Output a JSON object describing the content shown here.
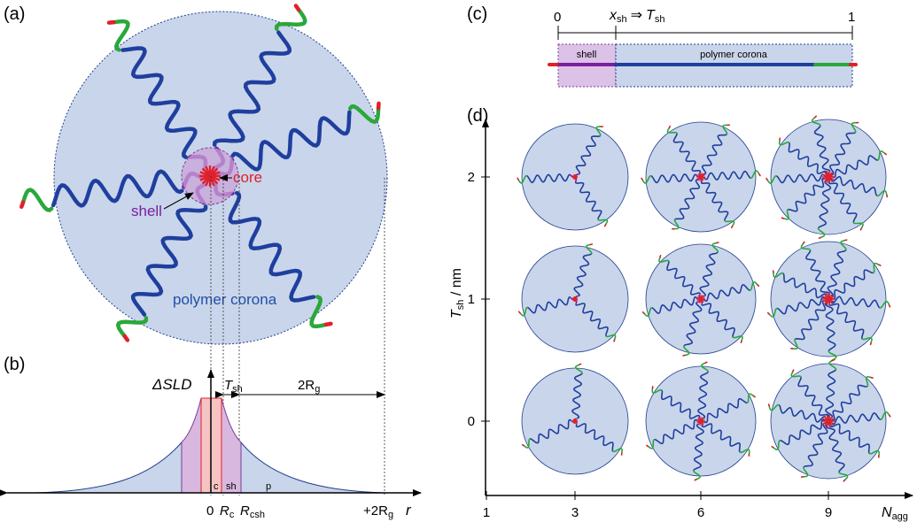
{
  "panel_a": {
    "label": "(a)",
    "core": "core",
    "shell": "shell",
    "corona": "polymer corona"
  },
  "panel_b": {
    "label": "(b)",
    "y_axis": "ΔSLD",
    "t_sh": {
      "main": "T",
      "sub": "sh"
    },
    "two_rg": {
      "main": "2R",
      "sub": "g"
    },
    "regions": {
      "core": "c",
      "shell": "sh",
      "corona": "p"
    },
    "x_labels": {
      "zero": "0",
      "r_c": {
        "main": "R",
        "sub": "c"
      },
      "r_csh": {
        "main": "R",
        "sub": "csh"
      },
      "plus_2rg": {
        "main": "+2R",
        "sub": "g"
      }
    },
    "x_axis": "r"
  },
  "panel_c": {
    "label": "(c)",
    "start": "0",
    "end": "1",
    "x_sh": {
      "main": "x",
      "sub": "sh"
    },
    "arrow": "⇒",
    "t_sh": {
      "main": "T",
      "sub": "sh"
    },
    "shell": "shell",
    "corona": "polymer corona"
  },
  "panel_d": {
    "label": "(d)",
    "y_axis": {
      "main": "T",
      "sub": "sh",
      "unit": " / nm"
    },
    "y_ticks": [
      "0",
      "1",
      "2"
    ],
    "x_ticks": [
      "1",
      "3",
      "6",
      "9"
    ],
    "x_axis": {
      "main": "N",
      "sub": "agg"
    }
  }
}
